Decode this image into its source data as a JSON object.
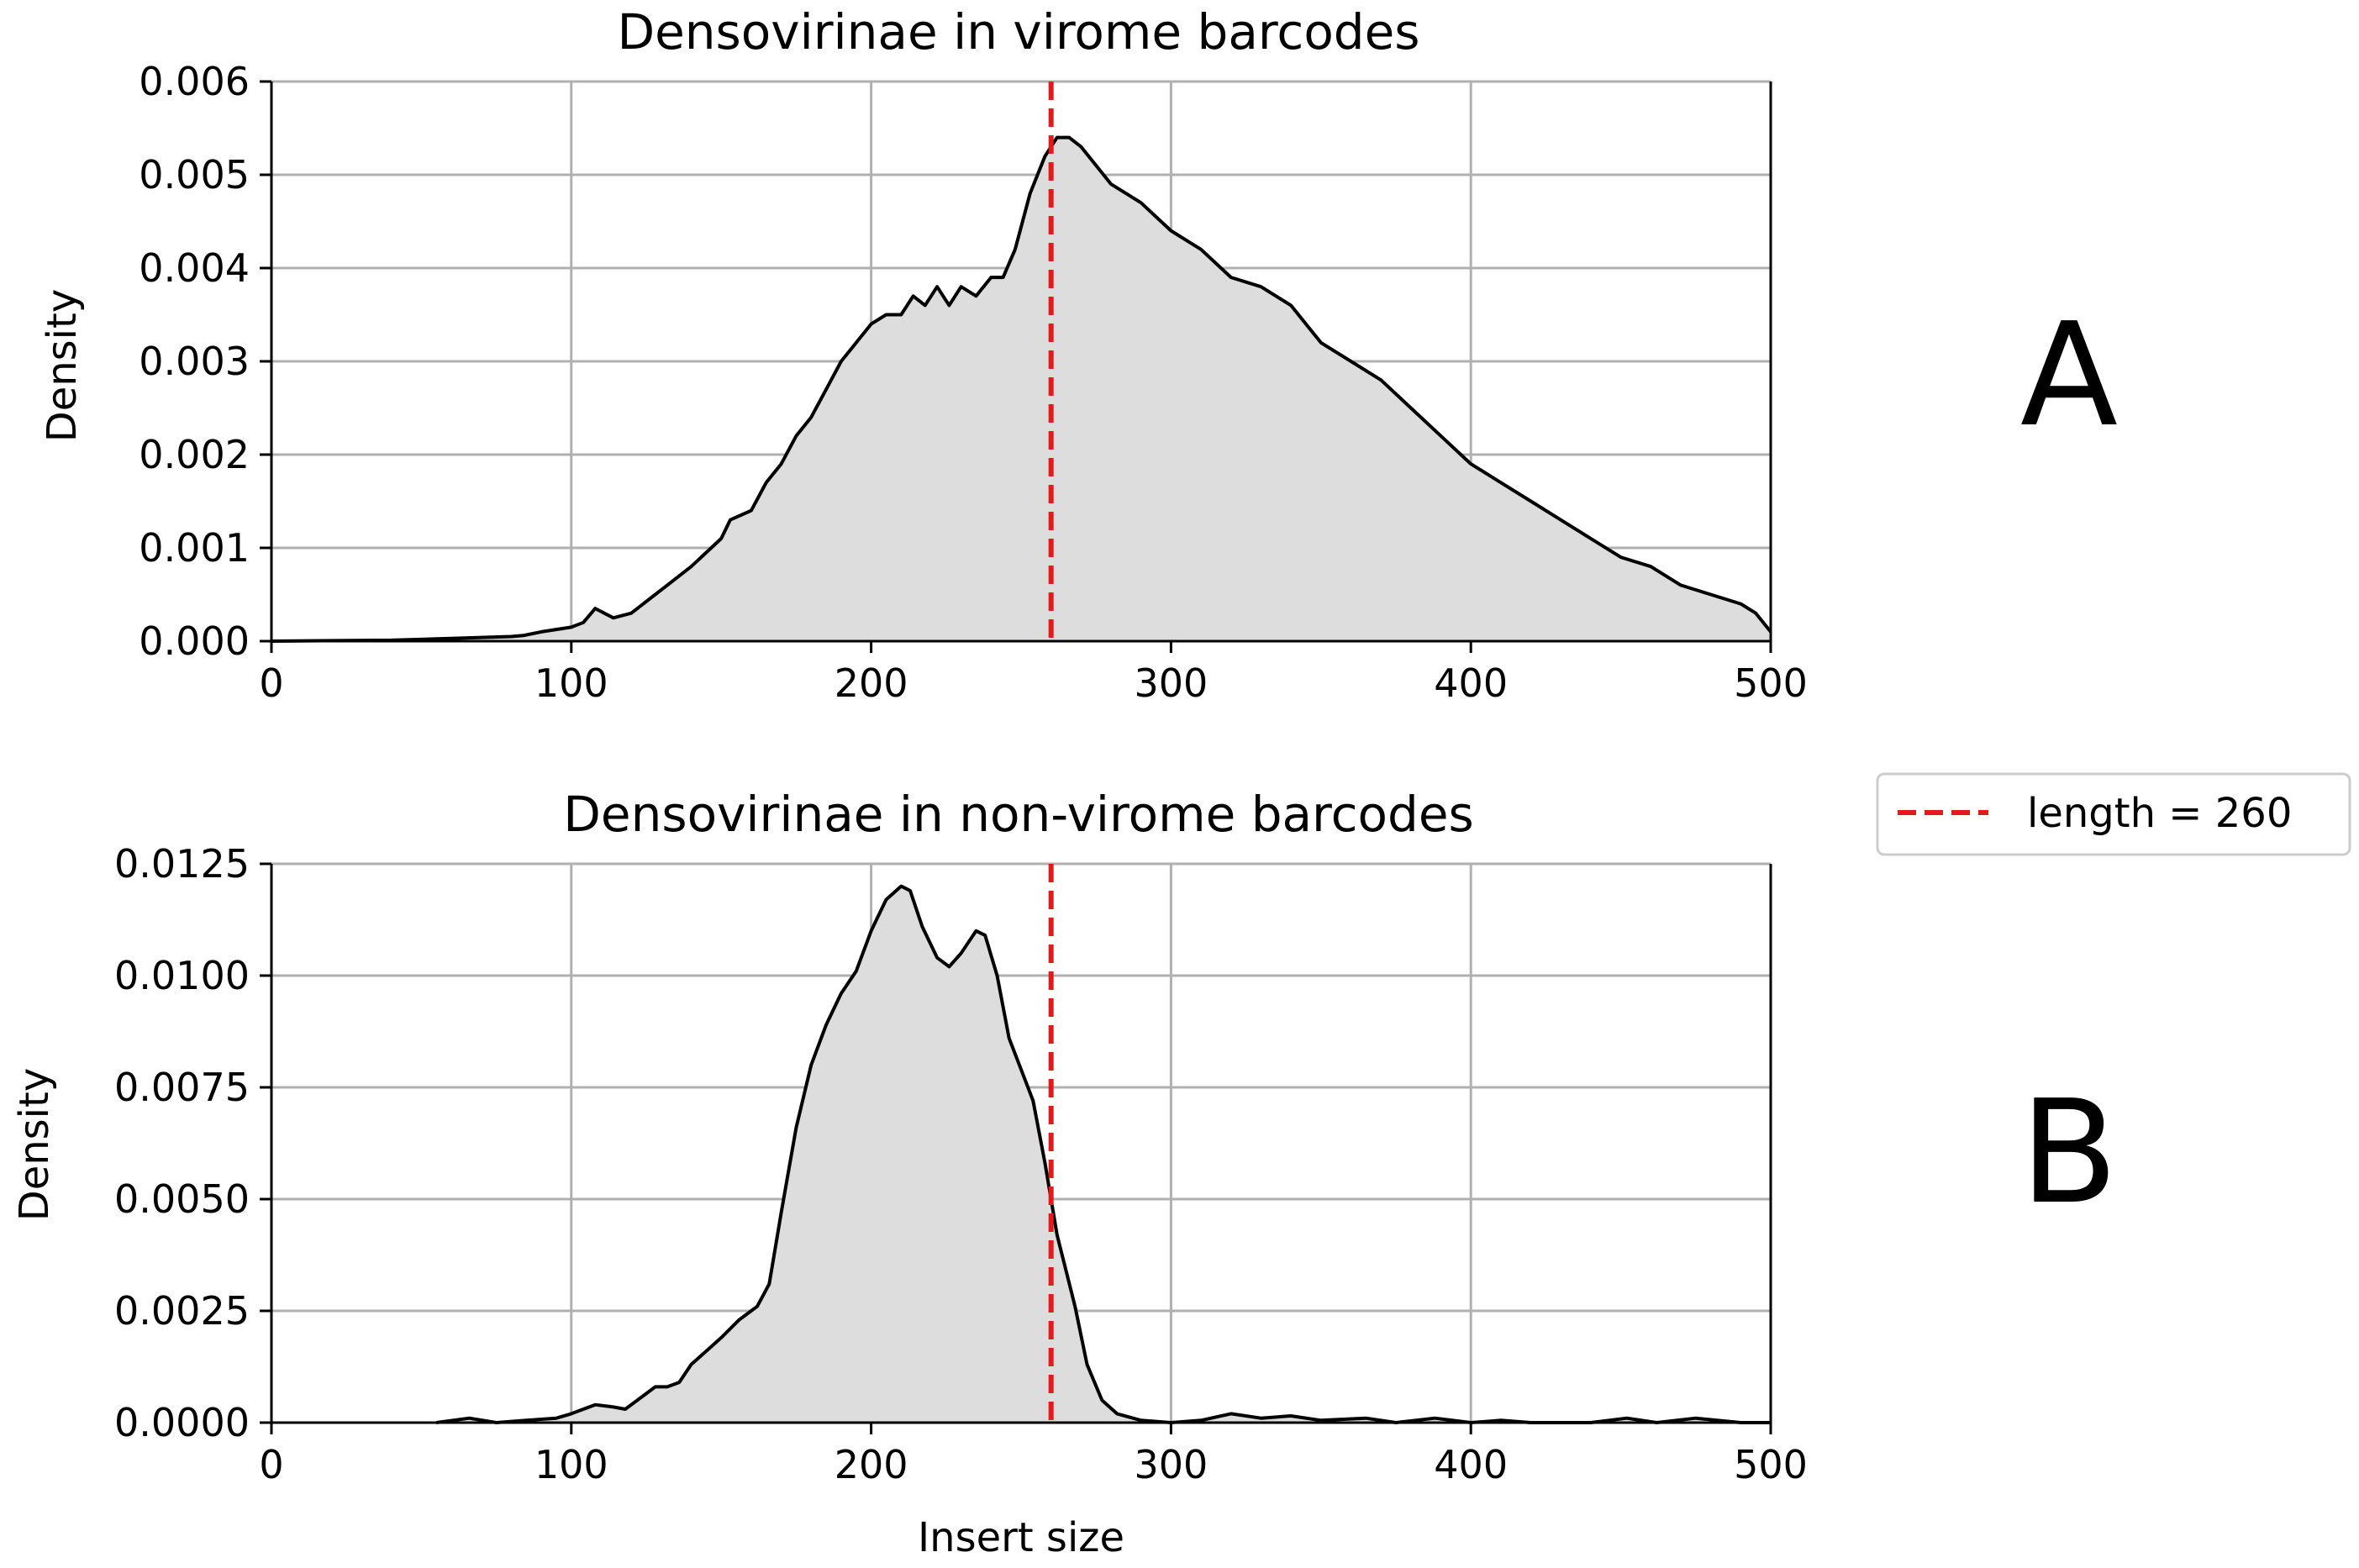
{
  "chart_data": [
    {
      "type": "area",
      "panel": "A",
      "title": "Densovirinae in virome barcodes",
      "xlabel": "",
      "ylabel": "Density",
      "xlim": [
        0,
        500
      ],
      "ylim": [
        0,
        0.006
      ],
      "xticks": [
        0,
        100,
        200,
        300,
        400,
        500
      ],
      "yticks": [
        "0.000",
        "0.001",
        "0.002",
        "0.003",
        "0.004",
        "0.005",
        "0.006"
      ],
      "grid": true,
      "reference_line": {
        "x": 260,
        "label": "length = 260",
        "color": "#e31a1c",
        "style": "dashed"
      },
      "points": [
        [
          0,
          0
        ],
        [
          40,
          1e-05
        ],
        [
          60,
          3e-05
        ],
        [
          80,
          5e-05
        ],
        [
          84,
          6e-05
        ],
        [
          90,
          0.0001
        ],
        [
          100,
          0.00015
        ],
        [
          104,
          0.0002
        ],
        [
          108,
          0.00035
        ],
        [
          114,
          0.00025
        ],
        [
          120,
          0.0003
        ],
        [
          126,
          0.00045
        ],
        [
          132,
          0.0006
        ],
        [
          140,
          0.0008
        ],
        [
          145,
          0.00095
        ],
        [
          150,
          0.0011
        ],
        [
          153,
          0.0013
        ],
        [
          160,
          0.0014
        ],
        [
          165,
          0.0017
        ],
        [
          170,
          0.0019
        ],
        [
          175,
          0.0022
        ],
        [
          180,
          0.0024
        ],
        [
          185,
          0.0027
        ],
        [
          190,
          0.003
        ],
        [
          195,
          0.0032
        ],
        [
          200,
          0.0034
        ],
        [
          205,
          0.0035
        ],
        [
          210,
          0.0035
        ],
        [
          214,
          0.0037
        ],
        [
          218,
          0.0036
        ],
        [
          222,
          0.0038
        ],
        [
          226,
          0.0036
        ],
        [
          230,
          0.0038
        ],
        [
          235,
          0.0037
        ],
        [
          240,
          0.0039
        ],
        [
          244,
          0.0039
        ],
        [
          248,
          0.0042
        ],
        [
          253,
          0.0048
        ],
        [
          258,
          0.0052
        ],
        [
          262,
          0.0054
        ],
        [
          266,
          0.0054
        ],
        [
          270,
          0.0053
        ],
        [
          275,
          0.0051
        ],
        [
          280,
          0.0049
        ],
        [
          285,
          0.0048
        ],
        [
          290,
          0.0047
        ],
        [
          300,
          0.0044
        ],
        [
          310,
          0.0042
        ],
        [
          320,
          0.0039
        ],
        [
          330,
          0.0038
        ],
        [
          340,
          0.0036
        ],
        [
          350,
          0.0032
        ],
        [
          360,
          0.003
        ],
        [
          370,
          0.0028
        ],
        [
          380,
          0.0025
        ],
        [
          390,
          0.0022
        ],
        [
          400,
          0.0019
        ],
        [
          410,
          0.0017
        ],
        [
          420,
          0.0015
        ],
        [
          430,
          0.0013
        ],
        [
          440,
          0.0011
        ],
        [
          450,
          0.0009
        ],
        [
          460,
          0.0008
        ],
        [
          470,
          0.0006
        ],
        [
          480,
          0.0005
        ],
        [
          490,
          0.0004
        ],
        [
          495,
          0.0003
        ],
        [
          500,
          0.0001
        ]
      ]
    },
    {
      "type": "area",
      "panel": "B",
      "title": "Densovirinae in non-virome barcodes",
      "xlabel": "Insert size",
      "ylabel": "Density",
      "xlim": [
        0,
        500
      ],
      "ylim": [
        0,
        0.0125
      ],
      "xticks": [
        0,
        100,
        200,
        300,
        400,
        500
      ],
      "yticks": [
        "0.0000",
        "0.0025",
        "0.0050",
        "0.0075",
        "0.0100",
        "0.0125"
      ],
      "grid": true,
      "reference_line": {
        "x": 260,
        "label": "length = 260",
        "color": "#e31a1c",
        "style": "dashed"
      },
      "points": [
        [
          55,
          0
        ],
        [
          66,
          0.0001
        ],
        [
          75,
          0
        ],
        [
          85,
          5e-05
        ],
        [
          95,
          0.0001
        ],
        [
          100,
          0.0002
        ],
        [
          104,
          0.0003
        ],
        [
          108,
          0.0004
        ],
        [
          114,
          0.00035
        ],
        [
          118,
          0.0003
        ],
        [
          124,
          0.0006
        ],
        [
          128,
          0.0008
        ],
        [
          132,
          0.0008
        ],
        [
          136,
          0.0009
        ],
        [
          140,
          0.0013
        ],
        [
          145,
          0.0016
        ],
        [
          150,
          0.0019
        ],
        [
          156,
          0.0023
        ],
        [
          162,
          0.0026
        ],
        [
          166,
          0.0031
        ],
        [
          170,
          0.0047
        ],
        [
          175,
          0.0066
        ],
        [
          180,
          0.008
        ],
        [
          185,
          0.0089
        ],
        [
          190,
          0.0096
        ],
        [
          195,
          0.0101
        ],
        [
          200,
          0.011
        ],
        [
          205,
          0.0117
        ],
        [
          210,
          0.012
        ],
        [
          213,
          0.0119
        ],
        [
          217,
          0.0111
        ],
        [
          222,
          0.0104
        ],
        [
          226,
          0.0102
        ],
        [
          230,
          0.0105
        ],
        [
          235,
          0.011
        ],
        [
          238,
          0.0109
        ],
        [
          242,
          0.01
        ],
        [
          246,
          0.0086
        ],
        [
          250,
          0.0079
        ],
        [
          254,
          0.0072
        ],
        [
          258,
          0.0058
        ],
        [
          262,
          0.0042
        ],
        [
          268,
          0.0026
        ],
        [
          272,
          0.0013
        ],
        [
          277,
          0.0005
        ],
        [
          282,
          0.0002
        ],
        [
          290,
          5e-05
        ],
        [
          300,
          0
        ],
        [
          310,
          5e-05
        ],
        [
          320,
          0.0002
        ],
        [
          330,
          0.0001
        ],
        [
          340,
          0.00015
        ],
        [
          350,
          5e-05
        ],
        [
          365,
          0.0001
        ],
        [
          375,
          0
        ],
        [
          388,
          0.0001
        ],
        [
          400,
          0
        ],
        [
          410,
          5e-05
        ],
        [
          420,
          0
        ],
        [
          440,
          0
        ],
        [
          452,
          0.0001
        ],
        [
          462,
          0
        ],
        [
          475,
          0.0001
        ],
        [
          490,
          0
        ],
        [
          500,
          0
        ]
      ]
    }
  ],
  "panel_labels": [
    "A",
    "B"
  ],
  "legend": {
    "label": "length = 260",
    "color": "#e31a1c",
    "style": "dashed",
    "placement": "right"
  }
}
